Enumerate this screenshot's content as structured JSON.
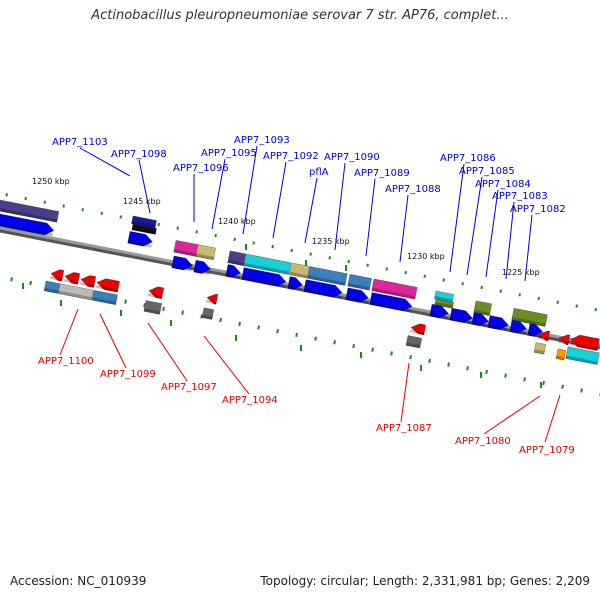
{
  "title": "Actinobacillus pleuropneumoniae serovar 7 str. AP76, complet...",
  "footer": {
    "accession": "Accession: NC_010939",
    "summary": "Topology: circular; Length: 2,331,981 bp; Genes: 2,209"
  },
  "colors": {
    "forward_label": "#0000cc",
    "reverse_label": "#dd0000",
    "backbone": "#888888",
    "tick": "#1a8a1a"
  },
  "kbp_labels": [
    "1250 kbp",
    "1245 kbp",
    "1240 kbp",
    "1235 kbp",
    "1230 kbp",
    "1225 kbp"
  ],
  "forward_genes": [
    "APP7_1103",
    "APP7_1098",
    "APP7_1096",
    "APP7_1095",
    "APP7_1093",
    "APP7_1092",
    "pflA",
    "APP7_1090",
    "APP7_1089",
    "APP7_1088",
    "APP7_1086",
    "APP7_1085",
    "APP7_1084",
    "APP7_1083",
    "APP7_1082"
  ],
  "reverse_genes": [
    "APP7_1100",
    "APP7_1099",
    "APP7_1097",
    "APP7_1094",
    "APP7_1087",
    "APP7_1080",
    "APP7_1079"
  ]
}
